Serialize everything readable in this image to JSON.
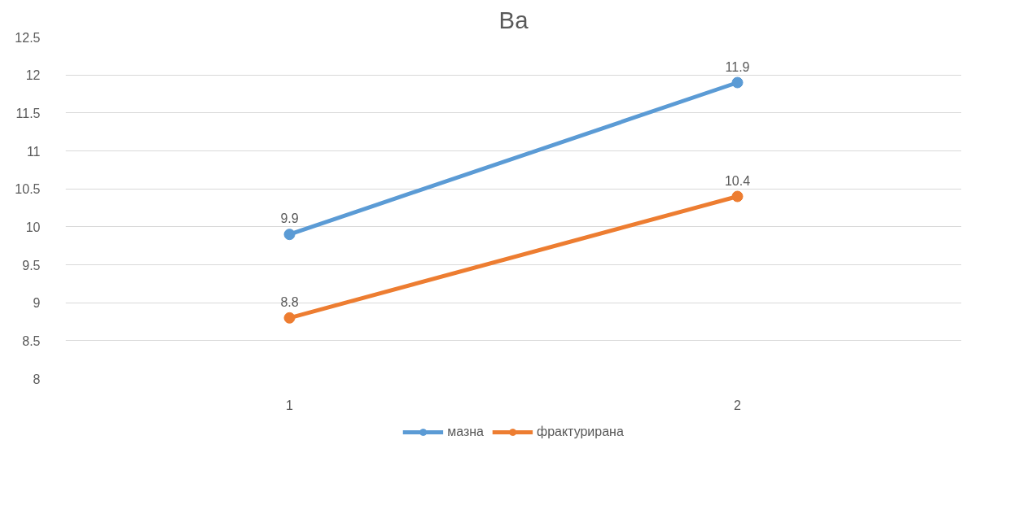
{
  "chart_data": {
    "type": "line",
    "title": "Ba",
    "categories": [
      "1",
      "2"
    ],
    "series": [
      {
        "name": "мазна",
        "color": "#5b9bd5",
        "values": [
          9.9,
          11.9
        ]
      },
      {
        "name": "фрактурирана",
        "color": "#ed7d31",
        "values": [
          8.8,
          10.4
        ]
      }
    ],
    "ylim": [
      8,
      12.5
    ],
    "yticks": [
      8,
      8.5,
      9,
      9.5,
      10,
      10.5,
      11,
      11.5,
      12,
      12.5
    ],
    "grid": "y",
    "legend": "bottom",
    "marker": "circle",
    "line_style": "solid",
    "data_labels": true
  }
}
